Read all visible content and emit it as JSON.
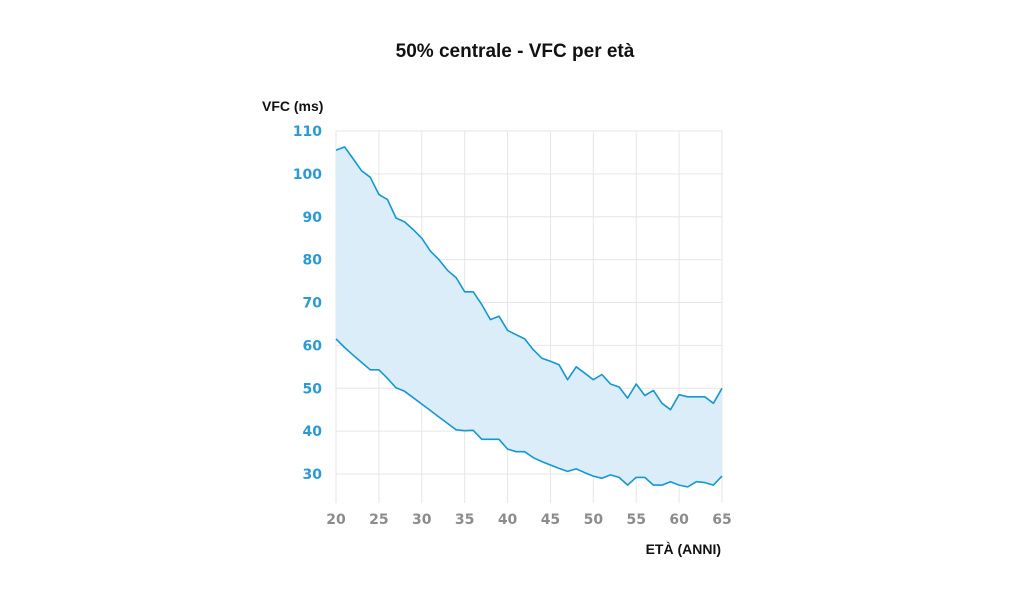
{
  "chart_data": {
    "type": "area",
    "title": "50% centrale - VFC per età",
    "xlabel": "ETÀ (ANNI)",
    "ylabel": "VFC (ms)",
    "xlim": [
      20,
      65
    ],
    "ylim": [
      25,
      110
    ],
    "x_ticks": [
      20,
      25,
      30,
      35,
      40,
      45,
      50,
      55,
      60,
      65
    ],
    "y_ticks": [
      30,
      40,
      50,
      60,
      70,
      80,
      90,
      100,
      110
    ],
    "grid": true,
    "legend": "none",
    "colors": {
      "line": "#1597d0",
      "fill": "#dbedf8",
      "ytick": "#2b9ad4",
      "xtick": "#8c8c8c",
      "grid": "#e6e6e6"
    },
    "x": [
      20,
      21,
      22,
      23,
      24,
      25,
      26,
      27,
      28,
      29,
      30,
      31,
      32,
      33,
      34,
      35,
      36,
      37,
      38,
      39,
      40,
      41,
      42,
      43,
      44,
      45,
      46,
      47,
      48,
      49,
      50,
      51,
      52,
      53,
      54,
      55,
      56,
      57,
      58,
      59,
      60,
      61,
      62,
      63,
      64,
      65
    ],
    "series": [
      {
        "values": [
          105.5,
          106.3,
          103.5,
          100.7,
          99.2,
          95.2,
          94.0,
          89.7,
          88.8,
          87.0,
          85.0,
          82.0,
          80.0,
          77.5,
          75.8,
          72.5,
          72.5,
          69.5,
          66.0,
          66.8,
          63.5,
          62.5,
          61.5,
          59.0,
          57.0,
          56.3,
          55.5,
          52.0,
          55.0,
          53.5,
          52.0,
          53.2,
          51.0,
          50.3,
          47.7,
          51.0,
          48.3,
          49.5,
          46.5,
          45.0,
          48.5,
          48.0,
          48.0,
          48.0,
          46.5,
          50.0
        ]
      },
      {
        "values": [
          61.5,
          59.5,
          57.7,
          56.0,
          54.3,
          54.3,
          52.3,
          50.1,
          49.3,
          47.8,
          46.3,
          44.8,
          43.3,
          41.8,
          40.3,
          40.1,
          40.2,
          38.1,
          38.1,
          38.1,
          35.8,
          35.2,
          35.2,
          33.8,
          32.9,
          32.1,
          31.3,
          30.6,
          31.2,
          30.3,
          29.5,
          29.0,
          29.8,
          29.2,
          27.4,
          29.2,
          29.2,
          27.4,
          27.4,
          28.2,
          27.4,
          27.0,
          28.2,
          28.0,
          27.4,
          29.5
        ]
      }
    ]
  }
}
